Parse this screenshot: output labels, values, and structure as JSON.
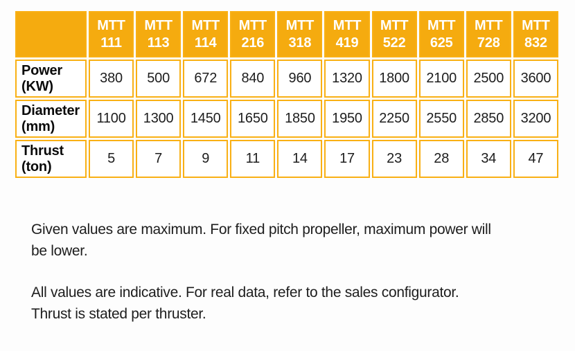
{
  "colors": {
    "header_bg": "#F5AB0F",
    "cell_border": "#F9B014",
    "header_text": "#FFFFFF",
    "body_text": "#1D1D1D"
  },
  "table": {
    "corner": "",
    "columns": [
      {
        "line1": "MTT",
        "line2": "111"
      },
      {
        "line1": "MTT",
        "line2": "113"
      },
      {
        "line1": "MTT",
        "line2": "114"
      },
      {
        "line1": "MTT",
        "line2": "216"
      },
      {
        "line1": "MTT",
        "line2": "318"
      },
      {
        "line1": "MTT",
        "line2": "419"
      },
      {
        "line1": "MTT",
        "line2": "522"
      },
      {
        "line1": "MTT",
        "line2": "625"
      },
      {
        "line1": "MTT",
        "line2": "728"
      },
      {
        "line1": "MTT",
        "line2": "832"
      }
    ],
    "rows": [
      {
        "label_line1": "Power",
        "label_line2": "(KW)",
        "values": [
          "380",
          "500",
          "672",
          "840",
          "960",
          "1320",
          "1800",
          "2100",
          "2500",
          "3600"
        ]
      },
      {
        "label_line1": "Diameter",
        "label_line2": "(mm)",
        "values": [
          "1100",
          "1300",
          "1450",
          "1650",
          "1850",
          "1950",
          "2250",
          "2550",
          "2850",
          "3200"
        ]
      },
      {
        "label_line1": "Thrust",
        "label_line2": "(ton)",
        "values": [
          "5",
          "7",
          "9",
          "11",
          "14",
          "17",
          "23",
          "28",
          "34",
          "47"
        ]
      }
    ]
  },
  "notes": [
    {
      "lines": [
        "Given values are maximum. For fixed pitch propeller, maximum power will",
        "be lower."
      ]
    },
    {
      "lines": [
        "All values are indicative. For real data, refer to the sales configurator.",
        "Thrust is stated per thruster."
      ]
    }
  ]
}
